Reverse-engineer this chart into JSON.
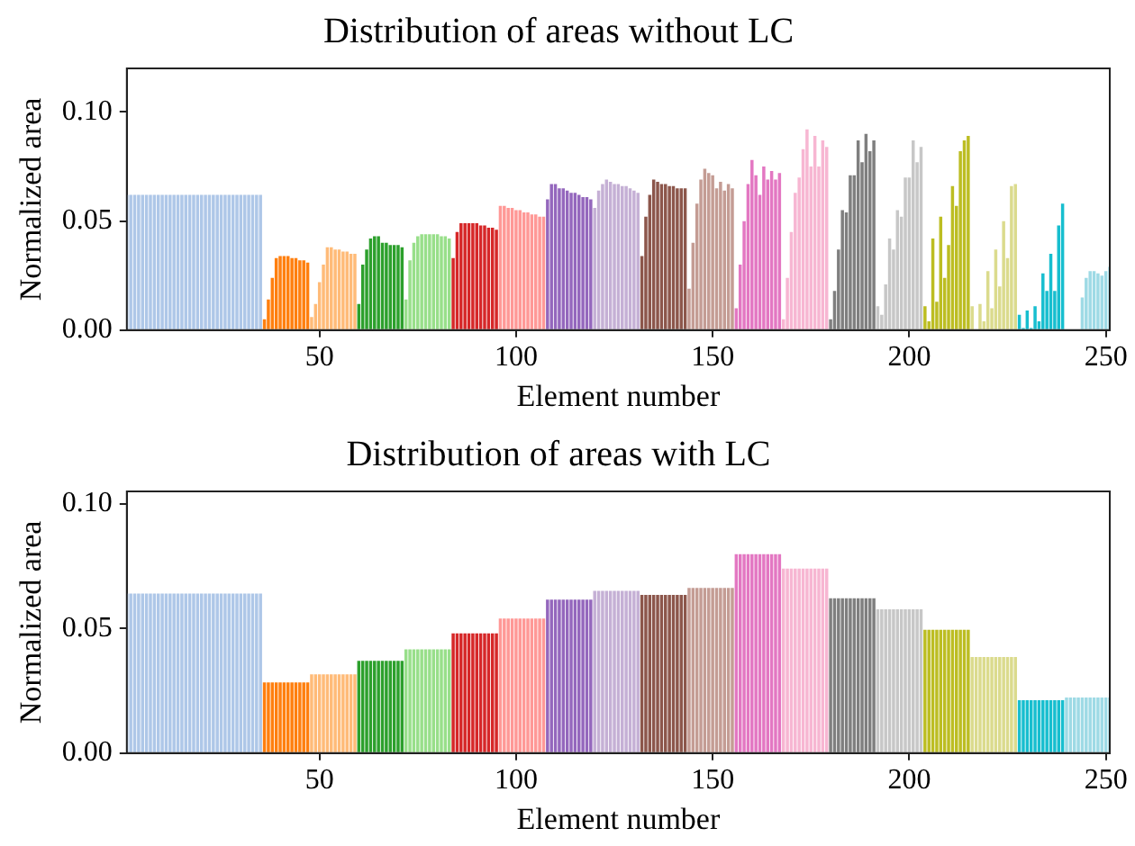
{
  "chart_data": [
    {
      "type": "bar",
      "title": "Distribution of areas without LC",
      "xlabel": "Element number",
      "ylabel": "Normalized area",
      "xlim": [
        1,
        251
      ],
      "xticks": [
        50,
        100,
        150,
        200,
        250
      ],
      "ylim": [
        0,
        0.12
      ],
      "yticks": [
        {
          "value": 0,
          "label": "0.00"
        },
        {
          "value": 0.05,
          "label": "0.05"
        },
        {
          "value": 0.1,
          "label": "0.10"
        }
      ],
      "grid": false,
      "legend": false,
      "series": [
        {
          "color": "#aec7e8",
          "x": [
            1,
            2,
            3,
            4,
            5,
            6,
            7,
            8,
            9,
            10,
            11,
            12,
            13,
            14,
            15,
            16,
            17,
            18,
            19,
            20,
            21,
            22,
            23,
            24,
            25,
            26,
            27,
            28,
            29,
            30,
            31,
            32,
            33,
            34,
            35
          ],
          "values": [
            0.062,
            0.062,
            0.062,
            0.062,
            0.062,
            0.062,
            0.062,
            0.062,
            0.062,
            0.062,
            0.062,
            0.062,
            0.062,
            0.062,
            0.062,
            0.062,
            0.062,
            0.062,
            0.062,
            0.062,
            0.062,
            0.062,
            0.062,
            0.062,
            0.062,
            0.062,
            0.062,
            0.062,
            0.062,
            0.062,
            0.062,
            0.062,
            0.062,
            0.062,
            0.062
          ]
        },
        {
          "color": "#ff7f0e",
          "x": [
            36,
            37,
            38,
            39,
            40,
            41,
            42,
            43,
            44,
            45,
            46,
            47
          ],
          "values": [
            0.005,
            0.014,
            0.024,
            0.033,
            0.034,
            0.034,
            0.034,
            0.033,
            0.033,
            0.032,
            0.032,
            0.031
          ]
        },
        {
          "color": "#ffbb78",
          "x": [
            48,
            49,
            50,
            51,
            52,
            53,
            54,
            55,
            56,
            57,
            58,
            59
          ],
          "values": [
            0.006,
            0.012,
            0.022,
            0.03,
            0.038,
            0.038,
            0.037,
            0.037,
            0.036,
            0.036,
            0.035,
            0.035
          ]
        },
        {
          "color": "#2ca02c",
          "x": [
            60,
            61,
            62,
            63,
            64,
            65,
            66,
            67,
            68,
            69,
            70,
            71
          ],
          "values": [
            0.012,
            0.03,
            0.037,
            0.042,
            0.043,
            0.043,
            0.04,
            0.04,
            0.039,
            0.039,
            0.039,
            0.038
          ]
        },
        {
          "color": "#98df8a",
          "x": [
            72,
            73,
            74,
            75,
            76,
            77,
            78,
            79,
            80,
            81,
            82,
            83
          ],
          "values": [
            0.014,
            0.032,
            0.04,
            0.043,
            0.044,
            0.044,
            0.044,
            0.044,
            0.044,
            0.043,
            0.043,
            0.042
          ]
        },
        {
          "color": "#d62728",
          "x": [
            84,
            85,
            86,
            87,
            88,
            89,
            90,
            91,
            92,
            93,
            94,
            95
          ],
          "values": [
            0.033,
            0.045,
            0.049,
            0.049,
            0.049,
            0.049,
            0.049,
            0.048,
            0.048,
            0.047,
            0.047,
            0.046
          ]
        },
        {
          "color": "#ff9896",
          "x": [
            96,
            97,
            98,
            99,
            100,
            101,
            102,
            103,
            104,
            105,
            106,
            107
          ],
          "values": [
            0.057,
            0.057,
            0.056,
            0.056,
            0.055,
            0.055,
            0.054,
            0.054,
            0.053,
            0.053,
            0.052,
            0.052
          ]
        },
        {
          "color": "#9467bd",
          "x": [
            108,
            109,
            110,
            111,
            112,
            113,
            114,
            115,
            116,
            117,
            118,
            119
          ],
          "values": [
            0.06,
            0.067,
            0.067,
            0.065,
            0.065,
            0.064,
            0.063,
            0.063,
            0.062,
            0.061,
            0.061,
            0.06
          ]
        },
        {
          "color": "#c5b0d5",
          "x": [
            120,
            121,
            122,
            123,
            124,
            125,
            126,
            127,
            128,
            129,
            130,
            131
          ],
          "values": [
            0.056,
            0.064,
            0.067,
            0.069,
            0.068,
            0.067,
            0.067,
            0.066,
            0.066,
            0.065,
            0.064,
            0.063
          ]
        },
        {
          "color": "#8c564b",
          "x": [
            132,
            133,
            134,
            135,
            136,
            137,
            138,
            139,
            140,
            141,
            142,
            143
          ],
          "values": [
            0.034,
            0.052,
            0.062,
            0.069,
            0.068,
            0.067,
            0.067,
            0.066,
            0.066,
            0.065,
            0.065,
            0.065
          ]
        },
        {
          "color": "#c49c94",
          "x": [
            144,
            145,
            146,
            147,
            148,
            149,
            150,
            151,
            152,
            153,
            154,
            155
          ],
          "values": [
            0.019,
            0.04,
            0.058,
            0.069,
            0.074,
            0.072,
            0.071,
            0.065,
            0.068,
            0.064,
            0.067,
            0.065
          ]
        },
        {
          "color": "#e377c2",
          "x": [
            156,
            157,
            158,
            159,
            160,
            161,
            162,
            163,
            164,
            165,
            166,
            167
          ],
          "values": [
            0.01,
            0.03,
            0.05,
            0.067,
            0.078,
            0.071,
            0.062,
            0.075,
            0.069,
            0.073,
            0.069,
            0.072
          ]
        },
        {
          "color": "#f7b6d2",
          "x": [
            168,
            169,
            170,
            171,
            172,
            173,
            174,
            175,
            176,
            177,
            178,
            179
          ],
          "values": [
            0.005,
            0.024,
            0.045,
            0.063,
            0.07,
            0.083,
            0.092,
            0.075,
            0.089,
            0.075,
            0.087,
            0.084
          ]
        },
        {
          "color": "#7f7f7f",
          "x": [
            180,
            181,
            182,
            183,
            184,
            185,
            186,
            187,
            188,
            189,
            190,
            191
          ],
          "values": [
            0.005,
            0.018,
            0.037,
            0.055,
            0.054,
            0.071,
            0.071,
            0.087,
            0.077,
            0.09,
            0.082,
            0.087
          ]
        },
        {
          "color": "#c7c7c7",
          "x": [
            192,
            193,
            194,
            195,
            196,
            197,
            198,
            199,
            200,
            201,
            202,
            203
          ],
          "values": [
            0.011,
            0.007,
            0.021,
            0.042,
            0.037,
            0.055,
            0.052,
            0.07,
            0.07,
            0.087,
            0.077,
            0.084
          ]
        },
        {
          "color": "#bcbd22",
          "x": [
            204,
            205,
            206,
            207,
            208,
            209,
            210,
            211,
            212,
            213,
            214,
            215
          ],
          "values": [
            0.011,
            0.004,
            0.042,
            0.013,
            0.052,
            0.024,
            0.039,
            0.066,
            0.057,
            0.082,
            0.087,
            0.089
          ]
        },
        {
          "color": "#dbdb8d",
          "x": [
            216,
            218,
            219,
            220,
            221,
            222,
            223,
            224,
            225,
            226,
            227
          ],
          "values": [
            0.011,
            0.012,
            0.004,
            0.027,
            0.01,
            0.037,
            0.02,
            0.05,
            0.033,
            0.066,
            0.067
          ]
        },
        {
          "color": "#17becf",
          "x": [
            228,
            229,
            230,
            231,
            232,
            233,
            234,
            235,
            236,
            237,
            238,
            239
          ],
          "values": [
            0.007,
            0.001,
            0.009,
            0.001,
            0.011,
            0.004,
            0.026,
            0.018,
            0.035,
            0.018,
            0.048,
            0.058
          ]
        },
        {
          "color": "#9edae5",
          "x": [
            244,
            245,
            246,
            247,
            248,
            249,
            250,
            251
          ],
          "values": [
            0.015,
            0.024,
            0.027,
            0.027,
            0.026,
            0.025,
            0.027,
            0.029
          ]
        }
      ]
    },
    {
      "type": "bar",
      "title": "Distribution of areas with LC",
      "xlabel": "Element number",
      "ylabel": "Normalized area",
      "xlim": [
        1,
        251
      ],
      "xticks": [
        50,
        100,
        150,
        200,
        250
      ],
      "ylim": [
        0,
        0.105
      ],
      "yticks": [
        {
          "value": 0,
          "label": "0.00"
        },
        {
          "value": 0.05,
          "label": "0.05"
        },
        {
          "value": 0.1,
          "label": "0.10"
        }
      ],
      "grid": false,
      "legend": false,
      "series": [
        {
          "color": "#aec7e8",
          "x": [
            1,
            2,
            3,
            4,
            5,
            6,
            7,
            8,
            9,
            10,
            11,
            12,
            13,
            14,
            15,
            16,
            17,
            18,
            19,
            20,
            21,
            22,
            23,
            24,
            25,
            26,
            27,
            28,
            29,
            30,
            31,
            32,
            33,
            34,
            35
          ],
          "values": [
            0.064,
            0.064,
            0.064,
            0.064,
            0.064,
            0.064,
            0.064,
            0.064,
            0.064,
            0.064,
            0.064,
            0.064,
            0.064,
            0.064,
            0.064,
            0.064,
            0.064,
            0.064,
            0.064,
            0.064,
            0.064,
            0.064,
            0.064,
            0.064,
            0.064,
            0.064,
            0.064,
            0.064,
            0.064,
            0.064,
            0.064,
            0.064,
            0.064,
            0.064,
            0.064
          ]
        },
        {
          "color": "#ff7f0e",
          "x": [
            36,
            37,
            38,
            39,
            40,
            41,
            42,
            43,
            44,
            45,
            46,
            47
          ],
          "values": [
            0.0284,
            0.0284,
            0.0284,
            0.0284,
            0.0284,
            0.0284,
            0.0284,
            0.0284,
            0.0284,
            0.0284,
            0.0284,
            0.0284
          ]
        },
        {
          "color": "#ffbb78",
          "x": [
            48,
            49,
            50,
            51,
            52,
            53,
            54,
            55,
            56,
            57,
            58,
            59
          ],
          "values": [
            0.0316,
            0.0316,
            0.0316,
            0.0316,
            0.0316,
            0.0316,
            0.0316,
            0.0316,
            0.0316,
            0.0316,
            0.0316,
            0.0316
          ]
        },
        {
          "color": "#2ca02c",
          "x": [
            60,
            61,
            62,
            63,
            64,
            65,
            66,
            67,
            68,
            69,
            70,
            71
          ],
          "values": [
            0.037,
            0.037,
            0.037,
            0.037,
            0.037,
            0.037,
            0.037,
            0.037,
            0.037,
            0.037,
            0.037,
            0.037
          ]
        },
        {
          "color": "#98df8a",
          "x": [
            72,
            73,
            74,
            75,
            76,
            77,
            78,
            79,
            80,
            81,
            82,
            83
          ],
          "values": [
            0.0416,
            0.0416,
            0.0416,
            0.0416,
            0.0416,
            0.0416,
            0.0416,
            0.0416,
            0.0416,
            0.0416,
            0.0416,
            0.0416
          ]
        },
        {
          "color": "#d62728",
          "x": [
            84,
            85,
            86,
            87,
            88,
            89,
            90,
            91,
            92,
            93,
            94,
            95
          ],
          "values": [
            0.048,
            0.048,
            0.048,
            0.048,
            0.048,
            0.048,
            0.048,
            0.048,
            0.048,
            0.048,
            0.048,
            0.048
          ]
        },
        {
          "color": "#ff9896",
          "x": [
            96,
            97,
            98,
            99,
            100,
            101,
            102,
            103,
            104,
            105,
            106,
            107
          ],
          "values": [
            0.054,
            0.054,
            0.054,
            0.054,
            0.054,
            0.054,
            0.054,
            0.054,
            0.054,
            0.054,
            0.054,
            0.054
          ]
        },
        {
          "color": "#9467bd",
          "x": [
            108,
            109,
            110,
            111,
            112,
            113,
            114,
            115,
            116,
            117,
            118,
            119
          ],
          "values": [
            0.0616,
            0.0616,
            0.0616,
            0.0616,
            0.0616,
            0.0616,
            0.0616,
            0.0616,
            0.0616,
            0.0616,
            0.0616,
            0.0616
          ]
        },
        {
          "color": "#c5b0d5",
          "x": [
            120,
            121,
            122,
            123,
            124,
            125,
            126,
            127,
            128,
            129,
            130,
            131
          ],
          "values": [
            0.0651,
            0.0651,
            0.0651,
            0.0651,
            0.0651,
            0.0651,
            0.0651,
            0.0651,
            0.0651,
            0.0651,
            0.0651,
            0.0651
          ]
        },
        {
          "color": "#8c564b",
          "x": [
            132,
            133,
            134,
            135,
            136,
            137,
            138,
            139,
            140,
            141,
            142,
            143
          ],
          "values": [
            0.0635,
            0.0635,
            0.0635,
            0.0635,
            0.0635,
            0.0635,
            0.0635,
            0.0635,
            0.0635,
            0.0635,
            0.0635,
            0.0635
          ]
        },
        {
          "color": "#c49c94",
          "x": [
            144,
            145,
            146,
            147,
            148,
            149,
            150,
            151,
            152,
            153,
            154,
            155
          ],
          "values": [
            0.0663,
            0.0663,
            0.0663,
            0.0663,
            0.0663,
            0.0663,
            0.0663,
            0.0663,
            0.0663,
            0.0663,
            0.0663,
            0.0663
          ]
        },
        {
          "color": "#e377c2",
          "x": [
            156,
            157,
            158,
            159,
            160,
            161,
            162,
            163,
            164,
            165,
            166,
            167
          ],
          "values": [
            0.0798,
            0.0798,
            0.0798,
            0.0798,
            0.0798,
            0.0798,
            0.0798,
            0.0798,
            0.0798,
            0.0798,
            0.0798,
            0.0798
          ]
        },
        {
          "color": "#f7b6d2",
          "x": [
            168,
            169,
            170,
            171,
            172,
            173,
            174,
            175,
            176,
            177,
            178,
            179
          ],
          "values": [
            0.074,
            0.074,
            0.074,
            0.074,
            0.074,
            0.074,
            0.074,
            0.074,
            0.074,
            0.074,
            0.074,
            0.074
          ]
        },
        {
          "color": "#7f7f7f",
          "x": [
            180,
            181,
            182,
            183,
            184,
            185,
            186,
            187,
            188,
            189,
            190,
            191
          ],
          "values": [
            0.0621,
            0.0621,
            0.0621,
            0.0621,
            0.0621,
            0.0621,
            0.0621,
            0.0621,
            0.0621,
            0.0621,
            0.0621,
            0.0621
          ]
        },
        {
          "color": "#c7c7c7",
          "x": [
            192,
            193,
            194,
            195,
            196,
            197,
            198,
            199,
            200,
            201,
            202,
            203
          ],
          "values": [
            0.0577,
            0.0577,
            0.0577,
            0.0577,
            0.0577,
            0.0577,
            0.0577,
            0.0577,
            0.0577,
            0.0577,
            0.0577,
            0.0577
          ]
        },
        {
          "color": "#bcbd22",
          "x": [
            204,
            205,
            206,
            207,
            208,
            209,
            210,
            211,
            212,
            213,
            214,
            215
          ],
          "values": [
            0.0495,
            0.0495,
            0.0495,
            0.0495,
            0.0495,
            0.0495,
            0.0495,
            0.0495,
            0.0495,
            0.0495,
            0.0495,
            0.0495
          ]
        },
        {
          "color": "#dbdb8d",
          "x": [
            216,
            217,
            218,
            219,
            220,
            221,
            222,
            223,
            224,
            225,
            226,
            227
          ],
          "values": [
            0.0386,
            0.0386,
            0.0386,
            0.0386,
            0.0386,
            0.0386,
            0.0386,
            0.0386,
            0.0386,
            0.0386,
            0.0386,
            0.0386
          ]
        },
        {
          "color": "#17becf",
          "x": [
            228,
            229,
            230,
            231,
            232,
            233,
            234,
            235,
            236,
            237,
            238,
            239
          ],
          "values": [
            0.0212,
            0.0212,
            0.0212,
            0.0212,
            0.0212,
            0.0212,
            0.0212,
            0.0212,
            0.0212,
            0.0212,
            0.0212,
            0.0212
          ]
        },
        {
          "color": "#9edae5",
          "x": [
            240,
            241,
            242,
            243,
            244,
            245,
            246,
            247,
            248,
            249,
            250,
            251
          ],
          "values": [
            0.0223,
            0.0223,
            0.0223,
            0.0223,
            0.0223,
            0.0223,
            0.0223,
            0.0223,
            0.0223,
            0.0223,
            0.0223,
            0.0223
          ]
        }
      ]
    }
  ]
}
